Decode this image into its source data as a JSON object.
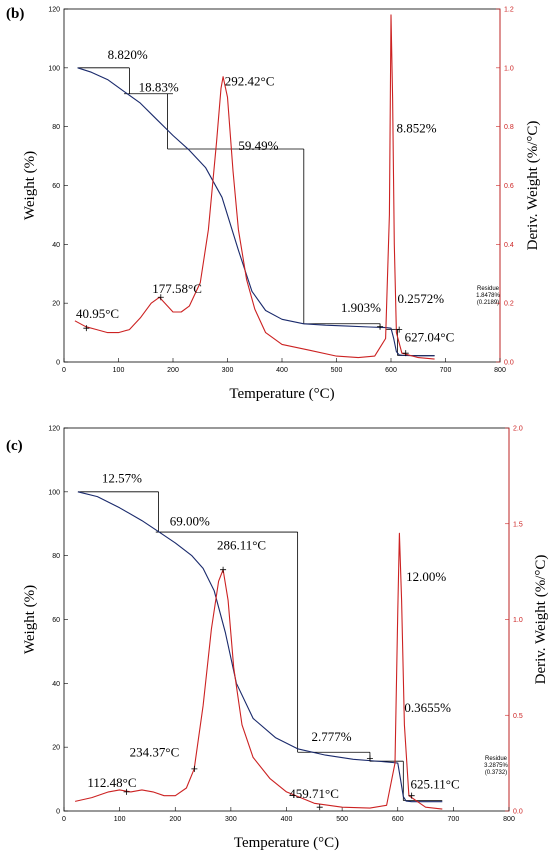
{
  "colors": {
    "weight": "#1a2a6c",
    "deriv": "#cc2222",
    "axis_right": "#cc2222",
    "frame": "#000000"
  },
  "chart_data": [
    {
      "type": "line",
      "panel_label": "(b)",
      "xlabel": "Temperature (°C)",
      "ylabel": "Weight (%)",
      "ylabel_right": "Deriv. Weight (%/°C)",
      "xlim": [
        0,
        800
      ],
      "ylim": [
        0,
        120
      ],
      "ylim_right": [
        0,
        1.2
      ],
      "x_ticks": [
        "0",
        "100",
        "200",
        "300",
        "400",
        "500",
        "600",
        "700",
        "800"
      ],
      "y_ticks": [
        "0",
        "20",
        "40",
        "60",
        "80",
        "100",
        "120"
      ],
      "y_ticks_right": [
        "0.0",
        "0.2",
        "0.4",
        "0.6",
        "0.8",
        "1.0",
        "1.2"
      ],
      "grid": false,
      "series": [
        {
          "axis": "left",
          "x": [
            25,
            50,
            80,
            110,
            140,
            170,
            200,
            230,
            260,
            290,
            320,
            345,
            370,
            400,
            440,
            480,
            520,
            560,
            590,
            600,
            605,
            610,
            615,
            625,
            650,
            680
          ],
          "y": [
            100,
            98.5,
            96,
            92,
            88,
            82.5,
            77,
            72,
            66,
            56,
            38,
            24,
            17.5,
            14.5,
            13,
            12.5,
            12.2,
            11.9,
            11.7,
            11.5,
            8,
            3.5,
            2.4,
            2.2,
            2.1,
            2.1
          ]
        },
        {
          "axis": "right",
          "x": [
            20,
            40,
            60,
            80,
            100,
            120,
            140,
            160,
            175,
            190,
            200,
            215,
            230,
            250,
            265,
            280,
            288,
            292,
            300,
            310,
            320,
            335,
            350,
            370,
            400,
            450,
            500,
            540,
            570,
            590,
            597,
            600,
            603,
            606,
            610,
            620,
            650,
            680
          ],
          "y": [
            0.14,
            0.12,
            0.11,
            0.1,
            0.1,
            0.11,
            0.15,
            0.2,
            0.22,
            0.19,
            0.17,
            0.17,
            0.19,
            0.27,
            0.45,
            0.75,
            0.93,
            0.97,
            0.9,
            0.65,
            0.45,
            0.28,
            0.18,
            0.1,
            0.06,
            0.04,
            0.02,
            0.015,
            0.02,
            0.08,
            0.5,
            1.18,
            0.9,
            0.4,
            0.1,
            0.03,
            0.015,
            0.01
          ]
        }
      ],
      "annotations": [
        {
          "text": "8.820%",
          "x": 80,
          "y": 103
        },
        {
          "text": "18.83%",
          "x": 137,
          "y": 92
        },
        {
          "text": "292.42°C",
          "x": 295,
          "y": 94
        },
        {
          "text": "59.49%",
          "x": 320,
          "y": 72
        },
        {
          "text": "8.852%",
          "x": 610,
          "y": 78
        },
        {
          "text": "1.903%",
          "x": 508,
          "y": 17
        },
        {
          "text": "0.2572%",
          "x": 612,
          "y": 20
        },
        {
          "text": "177.58°C",
          "x": 162,
          "y": 23.5,
          "axis": "left"
        },
        {
          "text": "40.95°C",
          "x": 22,
          "y": 15
        },
        {
          "text": "627.04°C",
          "x": 625,
          "y": 7
        }
      ],
      "residue": {
        "title": "Residue",
        "value": "1.8478%",
        "mass": "(0.2189)"
      }
    },
    {
      "type": "line",
      "panel_label": "(c)",
      "xlabel": "Temperature (°C)",
      "ylabel": "Weight (%)",
      "ylabel_right": "Deriv. Weight (%/°C)",
      "xlim": [
        0,
        800
      ],
      "ylim": [
        0,
        120
      ],
      "ylim_right": [
        0,
        2.0
      ],
      "x_ticks": [
        "0",
        "100",
        "200",
        "300",
        "400",
        "500",
        "600",
        "700",
        "800"
      ],
      "y_ticks": [
        "0",
        "20",
        "40",
        "60",
        "80",
        "100",
        "120"
      ],
      "y_ticks_right": [
        "0.0",
        "0.5",
        "1.0",
        "1.5",
        "2.0"
      ],
      "grid": false,
      "series": [
        {
          "axis": "left",
          "x": [
            25,
            60,
            100,
            140,
            170,
            200,
            230,
            250,
            270,
            290,
            310,
            340,
            380,
            420,
            470,
            520,
            570,
            590,
            600,
            605,
            610,
            615,
            625,
            650,
            680
          ],
          "y": [
            100,
            98.5,
            95,
            91,
            87.5,
            84,
            80,
            76,
            69,
            56,
            40,
            29,
            23,
            19.5,
            17.5,
            16.2,
            15.5,
            15.2,
            15,
            10,
            4.5,
            3.1,
            2.9,
            2.9,
            2.9
          ]
        },
        {
          "axis": "right",
          "x": [
            20,
            50,
            80,
            100,
            120,
            140,
            160,
            180,
            200,
            220,
            234,
            250,
            265,
            278,
            286,
            295,
            305,
            320,
            340,
            370,
            400,
            450,
            500,
            550,
            580,
            595,
            600,
            603,
            607,
            612,
            620,
            650,
            680
          ],
          "y": [
            0.05,
            0.07,
            0.1,
            0.11,
            0.1,
            0.11,
            0.1,
            0.08,
            0.08,
            0.12,
            0.22,
            0.55,
            0.95,
            1.2,
            1.26,
            1.1,
            0.75,
            0.45,
            0.28,
            0.17,
            0.1,
            0.04,
            0.02,
            0.015,
            0.03,
            0.25,
            1.05,
            1.45,
            1.1,
            0.45,
            0.08,
            0.02,
            0.01
          ]
        }
      ],
      "annotations": [
        {
          "text": "12.57%",
          "x": 68,
          "y": 103
        },
        {
          "text": "69.00%",
          "x": 190,
          "y": 89.5
        },
        {
          "text": "286.11°C",
          "x": 275,
          "y": 82
        },
        {
          "text": "12.00%",
          "x": 615,
          "y": 72
        },
        {
          "text": "2.777%",
          "x": 445,
          "y": 22
        },
        {
          "text": "0.3655%",
          "x": 612,
          "y": 31
        },
        {
          "text": "234.37°C",
          "x": 118,
          "y": 17
        },
        {
          "text": "112.48°C",
          "x": 42,
          "y": 7.5
        },
        {
          "text": "459.71°C",
          "x": 405,
          "y": 4
        },
        {
          "text": "625.11°C",
          "x": 623,
          "y": 7
        }
      ],
      "residue": {
        "title": "Residue",
        "value": "3.2875%",
        "mass": "(0.3732)"
      }
    }
  ]
}
